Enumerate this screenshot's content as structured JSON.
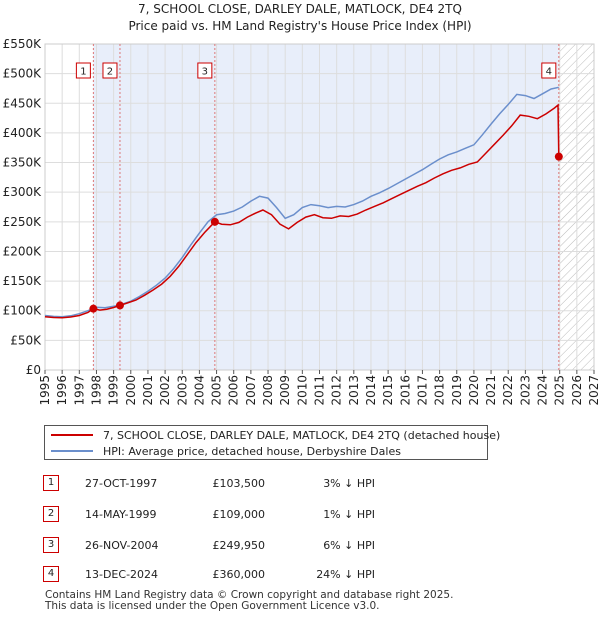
{
  "chart_data": {
    "type": "line",
    "title": "7, SCHOOL CLOSE, DARLEY DALE, MATLOCK, DE4 2TQ",
    "subtitle": "Price paid vs. HM Land Registry's House Price Index (HPI)",
    "x_ticks": [
      "1995",
      "1996",
      "1997",
      "1998",
      "1999",
      "2000",
      "2001",
      "2002",
      "2003",
      "2004",
      "2005",
      "2006",
      "2007",
      "2008",
      "2009",
      "2010",
      "2011",
      "2012",
      "2013",
      "2014",
      "2015",
      "2016",
      "2017",
      "2018",
      "2019",
      "2020",
      "2021",
      "2022",
      "2023",
      "2024",
      "2025",
      "2026",
      "2027"
    ],
    "y_ticks": [
      "£0",
      "£50K",
      "£100K",
      "£150K",
      "£200K",
      "£250K",
      "£300K",
      "£350K",
      "£400K",
      "£450K",
      "£500K",
      "£550K"
    ],
    "xlim": [
      1995,
      2027
    ],
    "ylim": [
      0,
      550000
    ],
    "ownership_shading": [
      1997.82,
      2024.95
    ],
    "future_hatch_start": 2025.0,
    "series": [
      {
        "name": "7, SCHOOL CLOSE, DARLEY DALE, MATLOCK, DE4 2TQ (detached house)",
        "color": "#cc0000",
        "points": [
          [
            1995.0,
            90000
          ],
          [
            1995.5,
            88500
          ],
          [
            1996.0,
            88000
          ],
          [
            1996.5,
            89500
          ],
          [
            1997.0,
            92000
          ],
          [
            1997.5,
            97000
          ],
          [
            1997.82,
            103500
          ],
          [
            1998.2,
            101000
          ],
          [
            1998.6,
            102500
          ],
          [
            1999.0,
            105500
          ],
          [
            1999.37,
            109000
          ],
          [
            1999.8,
            113000
          ],
          [
            2000.3,
            118000
          ],
          [
            2000.8,
            126000
          ],
          [
            2001.3,
            135000
          ],
          [
            2001.8,
            145000
          ],
          [
            2002.3,
            158000
          ],
          [
            2002.8,
            175000
          ],
          [
            2003.3,
            195000
          ],
          [
            2003.8,
            215000
          ],
          [
            2004.3,
            232000
          ],
          [
            2004.6,
            241000
          ],
          [
            2004.9,
            249950
          ],
          [
            2005.3,
            246000
          ],
          [
            2005.8,
            245000
          ],
          [
            2006.3,
            249000
          ],
          [
            2006.8,
            258000
          ],
          [
            2007.3,
            265000
          ],
          [
            2007.7,
            270000
          ],
          [
            2008.2,
            262000
          ],
          [
            2008.7,
            246000
          ],
          [
            2009.2,
            238000
          ],
          [
            2009.7,
            249000
          ],
          [
            2010.2,
            258000
          ],
          [
            2010.7,
            262000
          ],
          [
            2011.2,
            257000
          ],
          [
            2011.7,
            256000
          ],
          [
            2012.2,
            260000
          ],
          [
            2012.7,
            259000
          ],
          [
            2013.2,
            263000
          ],
          [
            2013.7,
            270000
          ],
          [
            2014.2,
            276000
          ],
          [
            2014.7,
            282000
          ],
          [
            2015.2,
            289000
          ],
          [
            2015.7,
            296000
          ],
          [
            2016.2,
            303000
          ],
          [
            2016.7,
            310000
          ],
          [
            2017.2,
            316000
          ],
          [
            2017.7,
            324000
          ],
          [
            2018.2,
            331000
          ],
          [
            2018.7,
            337000
          ],
          [
            2019.2,
            341000
          ],
          [
            2019.7,
            347000
          ],
          [
            2020.2,
            351000
          ],
          [
            2020.7,
            366000
          ],
          [
            2021.2,
            381000
          ],
          [
            2021.7,
            396000
          ],
          [
            2022.2,
            412000
          ],
          [
            2022.7,
            430000
          ],
          [
            2023.2,
            428000
          ],
          [
            2023.7,
            424000
          ],
          [
            2024.2,
            432000
          ],
          [
            2024.7,
            442000
          ],
          [
            2024.9,
            447000
          ],
          [
            2024.95,
            360000
          ],
          [
            2025.05,
            359000
          ]
        ]
      },
      {
        "name": "HPI: Average price, detached house, Derbyshire Dales",
        "color": "#6b8fcc",
        "points": [
          [
            1995.0,
            92000
          ],
          [
            1995.5,
            90500
          ],
          [
            1996.0,
            90000
          ],
          [
            1996.5,
            91500
          ],
          [
            1997.0,
            95000
          ],
          [
            1997.5,
            100000
          ],
          [
            1998.0,
            106000
          ],
          [
            1998.5,
            105000
          ],
          [
            1999.0,
            107500
          ],
          [
            1999.5,
            111000
          ],
          [
            2000.0,
            116000
          ],
          [
            2000.5,
            124000
          ],
          [
            2001.0,
            133000
          ],
          [
            2001.5,
            143000
          ],
          [
            2002.0,
            155000
          ],
          [
            2002.5,
            171000
          ],
          [
            2003.0,
            190000
          ],
          [
            2003.5,
            211000
          ],
          [
            2004.0,
            231000
          ],
          [
            2004.5,
            250000
          ],
          [
            2005.0,
            262000
          ],
          [
            2005.5,
            264000
          ],
          [
            2006.0,
            268000
          ],
          [
            2006.5,
            275000
          ],
          [
            2007.0,
            285000
          ],
          [
            2007.5,
            293000
          ],
          [
            2008.0,
            290000
          ],
          [
            2008.5,
            274000
          ],
          [
            2009.0,
            256000
          ],
          [
            2009.5,
            262000
          ],
          [
            2010.0,
            274000
          ],
          [
            2010.5,
            279000
          ],
          [
            2011.0,
            277000
          ],
          [
            2011.5,
            274000
          ],
          [
            2012.0,
            276000
          ],
          [
            2012.5,
            275000
          ],
          [
            2013.0,
            279000
          ],
          [
            2013.5,
            285000
          ],
          [
            2014.0,
            293000
          ],
          [
            2014.5,
            299000
          ],
          [
            2015.0,
            306000
          ],
          [
            2015.5,
            314000
          ],
          [
            2016.0,
            322000
          ],
          [
            2016.5,
            330000
          ],
          [
            2017.0,
            338000
          ],
          [
            2017.5,
            347000
          ],
          [
            2018.0,
            356000
          ],
          [
            2018.5,
            363000
          ],
          [
            2019.0,
            368000
          ],
          [
            2019.5,
            374000
          ],
          [
            2020.0,
            380000
          ],
          [
            2020.5,
            397000
          ],
          [
            2021.0,
            415000
          ],
          [
            2021.5,
            432000
          ],
          [
            2022.0,
            448000
          ],
          [
            2022.5,
            465000
          ],
          [
            2023.0,
            463000
          ],
          [
            2023.5,
            458000
          ],
          [
            2024.0,
            466000
          ],
          [
            2024.5,
            474000
          ],
          [
            2024.95,
            477000
          ]
        ]
      }
    ],
    "markers": [
      {
        "label": "1",
        "x": 1997.82,
        "y": 103500
      },
      {
        "label": "2",
        "x": 1999.37,
        "y": 109000
      },
      {
        "label": "3",
        "x": 2004.9,
        "y": 249950
      },
      {
        "label": "4",
        "x": 2024.95,
        "y": 360000
      }
    ]
  },
  "legend": {
    "items": [
      {
        "label": "7, SCHOOL CLOSE, DARLEY DALE, MATLOCK, DE4 2TQ (detached house)",
        "color": "#cc0000"
      },
      {
        "label": "HPI: Average price, detached house, Derbyshire Dales",
        "color": "#6b8fcc"
      }
    ]
  },
  "transactions": [
    {
      "num": "1",
      "date": "27-OCT-1997",
      "price": "£103,500",
      "hpi": "3% ↓ HPI"
    },
    {
      "num": "2",
      "date": "14-MAY-1999",
      "price": "£109,000",
      "hpi": "1% ↓ HPI"
    },
    {
      "num": "3",
      "date": "26-NOV-2004",
      "price": "£249,950",
      "hpi": "6% ↓ HPI"
    },
    {
      "num": "4",
      "date": "13-DEC-2024",
      "price": "£360,000",
      "hpi": "24% ↓ HPI"
    }
  ],
  "footer": {
    "line1": "Contains HM Land Registry data © Crown copyright and database right 2025.",
    "line2": "This data is licensed under the Open Government Licence v3.0."
  }
}
